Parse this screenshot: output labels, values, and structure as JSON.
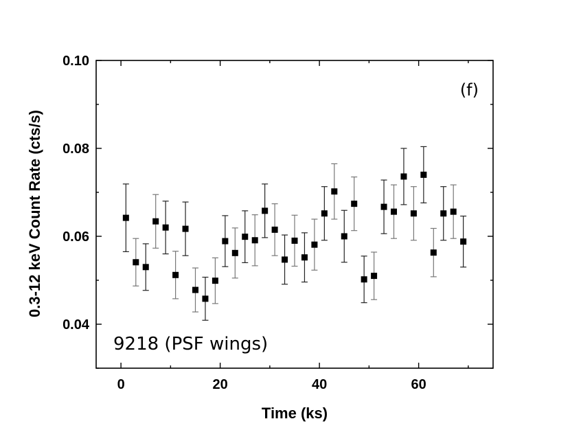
{
  "chart_data": {
    "type": "scatter",
    "title": "",
    "xlabel": "Time (ks)",
    "ylabel": "0.3-12 keV Count Rate (cts/s)",
    "xlim": [
      -5,
      75
    ],
    "ylim": [
      0.03,
      0.1
    ],
    "xticks": [
      0,
      20,
      40,
      60
    ],
    "xtick_labels": [
      "0",
      "20",
      "40",
      "60"
    ],
    "yticks": [
      0.04,
      0.06,
      0.08,
      0.1
    ],
    "ytick_labels": [
      "0.04",
      "0.06",
      "0.08",
      "0.10"
    ],
    "panel_label": "(f)",
    "annotation": "9218 (PSF wings)",
    "marker": "filled-square",
    "series": [
      {
        "name": "9218 (PSF wings)",
        "x": [
          1,
          3,
          5,
          7,
          9,
          11,
          13,
          15,
          17,
          19,
          21,
          23,
          25,
          27,
          29,
          31,
          33,
          35,
          37,
          39,
          41,
          43,
          45,
          47,
          49,
          51,
          53,
          55,
          57,
          59,
          61,
          63,
          65,
          67,
          69
        ],
        "y": [
          0.0642,
          0.0541,
          0.053,
          0.0634,
          0.062,
          0.0512,
          0.0617,
          0.0478,
          0.0458,
          0.0499,
          0.0589,
          0.0562,
          0.0599,
          0.0591,
          0.0658,
          0.0615,
          0.0547,
          0.059,
          0.0552,
          0.0581,
          0.0652,
          0.0702,
          0.06,
          0.0674,
          0.0502,
          0.051,
          0.0667,
          0.0656,
          0.0736,
          0.0652,
          0.074,
          0.0563,
          0.0652,
          0.0656,
          0.0588
        ],
        "yerr": [
          0.0077,
          0.0054,
          0.0053,
          0.0061,
          0.006,
          0.0054,
          0.0061,
          0.005,
          0.0049,
          0.0052,
          0.0058,
          0.0057,
          0.0059,
          0.0058,
          0.0061,
          0.0059,
          0.0056,
          0.0058,
          0.0056,
          0.0058,
          0.0061,
          0.0063,
          0.0059,
          0.0061,
          0.0053,
          0.0054,
          0.0061,
          0.0061,
          0.0064,
          0.0061,
          0.0064,
          0.0055,
          0.0061,
          0.0061,
          0.0058
        ]
      }
    ]
  }
}
